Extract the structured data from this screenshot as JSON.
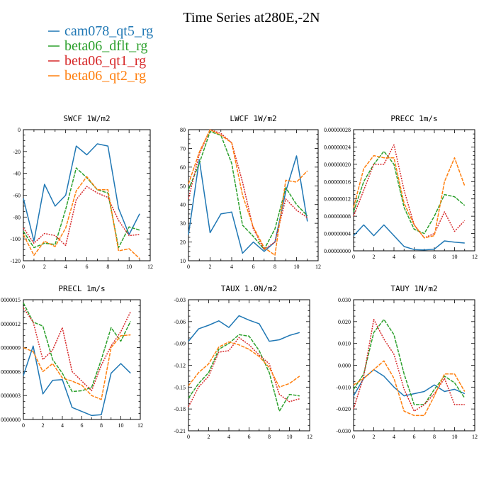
{
  "figure": {
    "title": "Time Series at280E,-2N"
  },
  "legend": [
    {
      "name": "cam078_qt5_rg",
      "color": "#1f77b4"
    },
    {
      "name": "beta06_dflt_rg",
      "color": "#2ca02c"
    },
    {
      "name": "beta06_qt1_rg",
      "color": "#d62728"
    },
    {
      "name": "beta06_qt2_rg",
      "color": "#ff7f0e"
    }
  ],
  "chart_data": [
    {
      "type": "line",
      "title": "SWCF   1W/m2",
      "x": [
        0,
        1,
        2,
        3,
        4,
        5,
        6,
        7,
        8,
        9,
        10,
        11
      ],
      "xlim": [
        0,
        12
      ],
      "xticks": [
        "0",
        "2",
        "4",
        "6",
        "8",
        "10",
        "12"
      ],
      "ylim": [
        -120,
        0
      ],
      "yticks": [
        "-120",
        "-100",
        "-80",
        "-60",
        "-40",
        "-20",
        "0"
      ],
      "series": [
        {
          "name": "cam078_qt5_rg",
          "values": [
            -63,
            -102,
            -50,
            -70,
            -60,
            -15,
            -23,
            -13,
            -15,
            -72,
            -96,
            -77
          ]
        },
        {
          "name": "beta06_dflt_rg",
          "values": [
            -93,
            -108,
            -104,
            -105,
            -73,
            -35,
            -44,
            -55,
            -58,
            -108,
            -89,
            -92
          ]
        },
        {
          "name": "beta06_qt1_rg",
          "values": [
            -90,
            -104,
            -95,
            -97,
            -106,
            -64,
            -52,
            -58,
            -62,
            -83,
            -97,
            -96
          ]
        },
        {
          "name": "beta06_qt2_rg",
          "values": [
            -96,
            -115,
            -102,
            -107,
            -90,
            -56,
            -43,
            -55,
            -55,
            -111,
            -109,
            -118
          ]
        }
      ]
    },
    {
      "type": "line",
      "title": "LWCF   1W/m2",
      "x": [
        0,
        1,
        2,
        3,
        4,
        5,
        6,
        7,
        8,
        9,
        10,
        11
      ],
      "xlim": [
        0,
        12
      ],
      "xticks": [
        "0",
        "2",
        "4",
        "6",
        "8",
        "10",
        "12"
      ],
      "ylim": [
        10,
        80
      ],
      "yticks": [
        "10",
        "20",
        "30",
        "40",
        "50",
        "60",
        "70",
        "80"
      ],
      "series": [
        {
          "name": "cam078_qt5_rg",
          "values": [
            24,
            64,
            25,
            35,
            36,
            14,
            20,
            15,
            20,
            47,
            66,
            31
          ]
        },
        {
          "name": "beta06_dflt_rg",
          "values": [
            48,
            62,
            79,
            77,
            62,
            29,
            23,
            16,
            27,
            49,
            40,
            34
          ]
        },
        {
          "name": "beta06_qt1_rg",
          "values": [
            43,
            67,
            80,
            78,
            73,
            52,
            27,
            16,
            20,
            43,
            37,
            33
          ]
        },
        {
          "name": "beta06_qt2_rg",
          "values": [
            51,
            68,
            80,
            77,
            73,
            45,
            28,
            17,
            13,
            53,
            52,
            58
          ]
        }
      ]
    },
    {
      "type": "line",
      "title": "PRECC   1m/s",
      "x": [
        0,
        1,
        2,
        3,
        4,
        5,
        6,
        7,
        8,
        9,
        10,
        11
      ],
      "xlim": [
        0,
        12
      ],
      "xticks": [
        "0",
        "2",
        "4",
        "6",
        "8",
        "10",
        "12"
      ],
      "ylim": [
        0,
        2.8e-07
      ],
      "yticks": [
        "0.00000000",
        "0.00000004",
        "0.00000008",
        "0.00000012",
        "0.00000016",
        "0.00000020",
        "0.00000024",
        "0.00000028"
      ],
      "series": [
        {
          "name": "cam078_qt5_rg",
          "values": [
            3.5e-08,
            6e-08,
            3.5e-08,
            6e-08,
            3.5e-08,
            1e-08,
            3e-09,
            2e-09,
            4e-09,
            2.3e-08,
            2e-08,
            1.8e-08
          ]
        },
        {
          "name": "beta06_dflt_rg",
          "values": [
            9e-08,
            1.6e-07,
            2e-07,
            2.3e-07,
            2e-07,
            1e-07,
            5e-08,
            4e-08,
            8e-08,
            1.3e-07,
            1.25e-07,
            1.05e-07
          ]
        },
        {
          "name": "beta06_qt1_rg",
          "values": [
            8e-08,
            1.4e-07,
            2e-07,
            2e-07,
            2.45e-07,
            1.4e-07,
            6e-08,
            3e-08,
            4e-08,
            9e-08,
            4.5e-08,
            7e-08
          ]
        },
        {
          "name": "beta06_qt2_rg",
          "values": [
            1e-07,
            1.9e-07,
            2.2e-07,
            2.15e-07,
            2.15e-07,
            1.1e-07,
            6e-08,
            3e-08,
            3.5e-08,
            1.6e-07,
            2.15e-07,
            1.5e-07
          ]
        }
      ]
    },
    {
      "type": "line",
      "title": "PRECL   1m/s",
      "x": [
        0,
        1,
        2,
        3,
        4,
        5,
        6,
        7,
        8,
        9,
        10,
        11
      ],
      "xlim": [
        0,
        12
      ],
      "xticks": [
        "0",
        "2",
        "4",
        "6",
        "8",
        "10",
        "12"
      ],
      "ylim": [
        0,
        1.5e-08
      ],
      "yticks": [
        "0000000",
        "0000003",
        "0000006",
        "0000009",
        "0000012",
        "0000015"
      ],
      "series": [
        {
          "name": "cam078_qt5_rg",
          "values": [
            5.5e-09,
            9.2e-09,
            3.2e-09,
            4.9e-09,
            5e-09,
            1.5e-09,
            1e-09,
            5e-10,
            6e-10,
            5.8e-09,
            7e-09,
            5.8e-09
          ]
        },
        {
          "name": "beta06_dflt_rg",
          "values": [
            1.46e-08,
            1.22e-08,
            1.17e-08,
            7.5e-09,
            5.8e-09,
            3.5e-09,
            3.6e-09,
            4e-09,
            7.5e-09,
            1.15e-08,
            9.8e-09,
            1.23e-08
          ]
        },
        {
          "name": "beta06_qt1_rg",
          "values": [
            1.4e-08,
            1.22e-08,
            7.5e-09,
            8.7e-09,
            1.15e-08,
            6e-09,
            4.8e-09,
            3.6e-09,
            6.8e-09,
            9.2e-09,
            1.1e-08,
            1.35e-08
          ]
        },
        {
          "name": "beta06_qt2_rg",
          "values": [
            9e-09,
            8.5e-09,
            6e-09,
            7e-09,
            5.2e-09,
            4.8e-09,
            4.3e-09,
            3e-09,
            2.5e-09,
            9e-09,
            1.05e-08,
            1.06e-08
          ]
        }
      ]
    },
    {
      "type": "line",
      "title": "TAUX   1.0N/m2",
      "x": [
        0,
        1,
        2,
        3,
        4,
        5,
        6,
        7,
        8,
        9,
        10,
        11
      ],
      "xlim": [
        0,
        12
      ],
      "xticks": [
        "0",
        "2",
        "4",
        "6",
        "8",
        "10",
        "12"
      ],
      "ylim": [
        -0.21,
        -0.03
      ],
      "yticks": [
        "-0.21",
        "-0.18",
        "-0.15",
        "-0.12",
        "-0.09",
        "-0.06",
        "-0.03"
      ],
      "series": [
        {
          "name": "cam078_qt5_rg",
          "values": [
            -0.087,
            -0.07,
            -0.065,
            -0.059,
            -0.068,
            -0.052,
            -0.058,
            -0.063,
            -0.087,
            -0.085,
            -0.079,
            -0.075
          ]
        },
        {
          "name": "beta06_dflt_rg",
          "values": [
            -0.165,
            -0.145,
            -0.13,
            -0.098,
            -0.09,
            -0.078,
            -0.08,
            -0.1,
            -0.13,
            -0.183,
            -0.16,
            -0.162
          ]
        },
        {
          "name": "beta06_qt1_rg",
          "values": [
            -0.177,
            -0.15,
            -0.135,
            -0.102,
            -0.1,
            -0.082,
            -0.092,
            -0.106,
            -0.118,
            -0.16,
            -0.17,
            -0.166
          ]
        },
        {
          "name": "beta06_qt2_rg",
          "values": [
            -0.148,
            -0.13,
            -0.118,
            -0.095,
            -0.088,
            -0.092,
            -0.098,
            -0.108,
            -0.123,
            -0.15,
            -0.145,
            -0.135
          ]
        }
      ]
    },
    {
      "type": "line",
      "title": "TAUY   1N/m2",
      "x": [
        0,
        1,
        2,
        3,
        4,
        5,
        6,
        7,
        8,
        9,
        10,
        11
      ],
      "xlim": [
        0,
        12
      ],
      "xticks": [
        "0",
        "2",
        "4",
        "6",
        "8",
        "10",
        "12"
      ],
      "ylim": [
        -0.03,
        0.03
      ],
      "yticks": [
        "-0.030",
        "-0.020",
        "-0.010",
        "0.000",
        "0.010",
        "0.020",
        "0.030"
      ],
      "series": [
        {
          "name": "cam078_qt5_rg",
          "values": [
            -0.014,
            -0.006,
            -0.002,
            -0.005,
            -0.01,
            -0.014,
            -0.013,
            -0.012,
            -0.009,
            -0.012,
            -0.011,
            -0.013
          ]
        },
        {
          "name": "beta06_dflt_rg",
          "values": [
            -0.011,
            -0.004,
            0.015,
            0.021,
            0.014,
            -0.004,
            -0.018,
            -0.018,
            -0.011,
            -0.005,
            -0.008,
            -0.015
          ]
        },
        {
          "name": "beta06_qt1_rg",
          "values": [
            -0.02,
            -0.005,
            0.021,
            0.012,
            0.005,
            -0.011,
            -0.021,
            -0.018,
            -0.013,
            -0.006,
            -0.018,
            -0.018
          ]
        },
        {
          "name": "beta06_qt2_rg",
          "values": [
            -0.009,
            -0.006,
            -0.002,
            0.002,
            -0.006,
            -0.021,
            -0.023,
            -0.023,
            -0.014,
            -0.004,
            -0.004,
            -0.012
          ]
        }
      ]
    }
  ]
}
